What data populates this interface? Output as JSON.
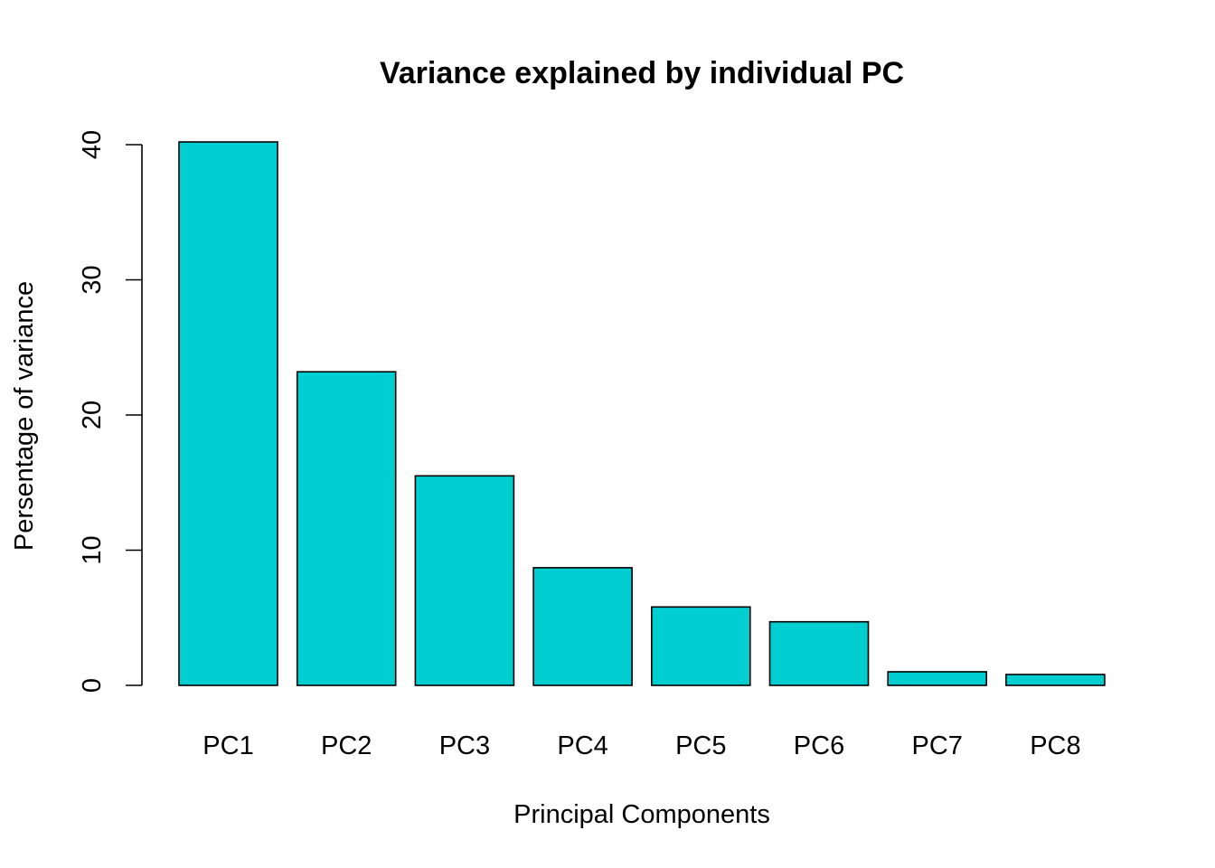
{
  "chart_data": {
    "type": "bar",
    "title": "Variance explained by individual PC",
    "xlabel": "Principal Components",
    "ylabel": "Persentage of variance",
    "categories": [
      "PC1",
      "PC2",
      "PC3",
      "PC4",
      "PC5",
      "PC6",
      "PC7",
      "PC8"
    ],
    "values": [
      40.2,
      23.2,
      15.5,
      8.7,
      5.8,
      4.7,
      1.0,
      0.8
    ],
    "ylim": [
      0,
      40
    ],
    "yticks": [
      0,
      10,
      20,
      30,
      40
    ],
    "bar_color": "#00CED1",
    "grid": false,
    "legend": "none"
  }
}
